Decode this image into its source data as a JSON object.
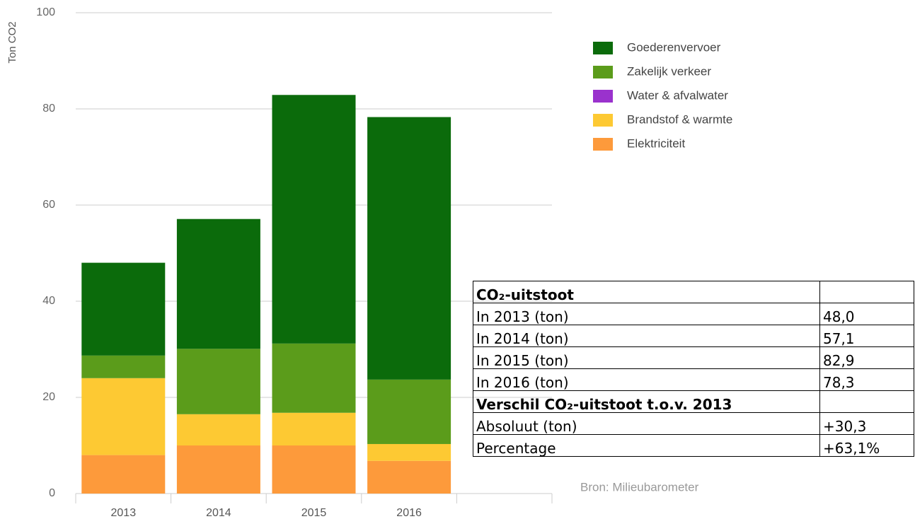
{
  "chart_data": {
    "type": "stacked_bar",
    "y_label": "Ton CO2",
    "source": "Bron: Milieubarometer",
    "categories": [
      "2013",
      "2014",
      "2015",
      "2016",
      null
    ],
    "series": [
      {
        "name": "Goederenvervoer",
        "color": "#0b6b0b",
        "values": [
          19.3,
          27.0,
          51.7,
          54.6,
          null
        ]
      },
      {
        "name": "Zakelijk verkeer",
        "color": "#5b9c1b",
        "values": [
          4.7,
          13.6,
          14.4,
          13.4,
          null
        ]
      },
      {
        "name": "Water & afvalwater",
        "color": "#9a32cd",
        "values": [
          0,
          0,
          0,
          0,
          null
        ]
      },
      {
        "name": "Brandstof & warmte",
        "color": "#fdc933",
        "values": [
          16,
          6.5,
          6.8,
          3.5,
          null
        ]
      },
      {
        "name": "Elektriciteit",
        "color": "#fd9a3b",
        "values": [
          8,
          10,
          10,
          6.8,
          null
        ]
      }
    ],
    "ylim": [
      0,
      100
    ],
    "yticks": [
      0,
      20,
      40,
      60,
      80,
      100
    ],
    "grid": true
  },
  "table": {
    "sections": [
      {
        "title": "CO₂-uitstoot",
        "rows": [
          [
            "In 2013 (ton)",
            "48,0"
          ],
          [
            "In 2014 (ton)",
            "57,1"
          ],
          [
            "In 2015 (ton)",
            "82,9"
          ],
          [
            "In 2016 (ton)",
            "78,3"
          ]
        ]
      },
      {
        "title": "Verschil CO₂-uitstoot t.o.v. 2013",
        "rows": [
          [
            "Absoluut (ton)",
            "+30,3"
          ],
          [
            "Percentage",
            "+63,1%"
          ]
        ]
      }
    ]
  }
}
